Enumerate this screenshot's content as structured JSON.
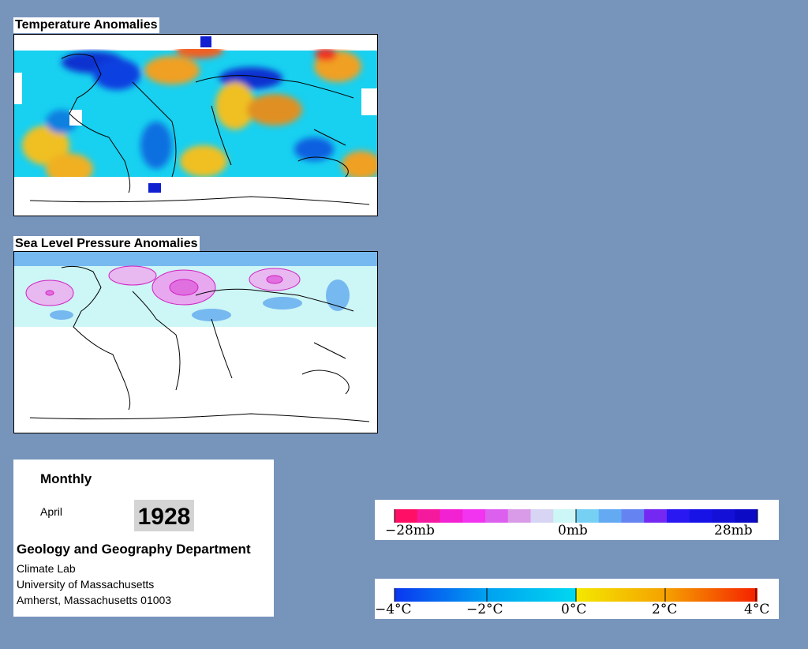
{
  "temperature_panel": {
    "title": "Temperature Anomalies"
  },
  "pressure_panel": {
    "title": "Sea Level Pressure Anomalies"
  },
  "info": {
    "frequency": "Monthly",
    "month": "April",
    "year": "1928",
    "department": "Geology and Geography Department",
    "lab": "Climate Lab",
    "university": "University of Massachusetts",
    "address": "Amherst, Massachusetts 01003"
  },
  "pressure_legend": {
    "labels": [
      "−28mb",
      "0mb",
      "28mb"
    ],
    "colors": [
      "#ff1066",
      "#f5199e",
      "#f221d2",
      "#f233f0",
      "#dc60ee",
      "#d99be8",
      "#d7d4f4",
      "#cdf6f6",
      "#76d0f4",
      "#63aaf3",
      "#6584f2",
      "#7428f2",
      "#2918f2",
      "#1713e6",
      "#1410d7",
      "#0c0ac4"
    ]
  },
  "temperature_legend": {
    "labels": [
      "−4°C",
      "−2°C",
      "0°C",
      "2°C",
      "4°C"
    ],
    "colors": [
      "#0a36f0",
      "#00a0f0",
      "#00d8f0",
      "#f4e800",
      "#f5a000",
      "#f52000"
    ]
  },
  "colors": {
    "background": "#7794bb",
    "land_outline": "#000000"
  }
}
